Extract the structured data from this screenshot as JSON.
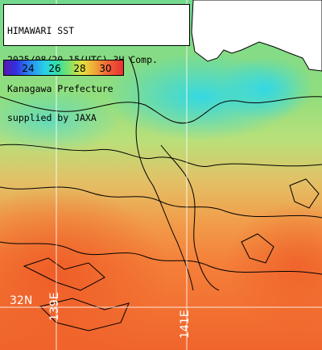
{
  "title": {
    "line1": "HIMAWARI SST",
    "line2": "2025/08/20 15(UTC) 3H Comp.",
    "line3": "Kanagawa Prefecture",
    "line4": "supplied by JAXA"
  },
  "colorbar": {
    "labels": [
      "24",
      "26",
      "28",
      "30"
    ]
  },
  "grid_labels": {
    "lat": "32N",
    "lon_left": "139E",
    "lon_right": "141E"
  },
  "colors": {
    "land": "#ffffff",
    "coast": "#000000",
    "grid": "#ffffff"
  }
}
